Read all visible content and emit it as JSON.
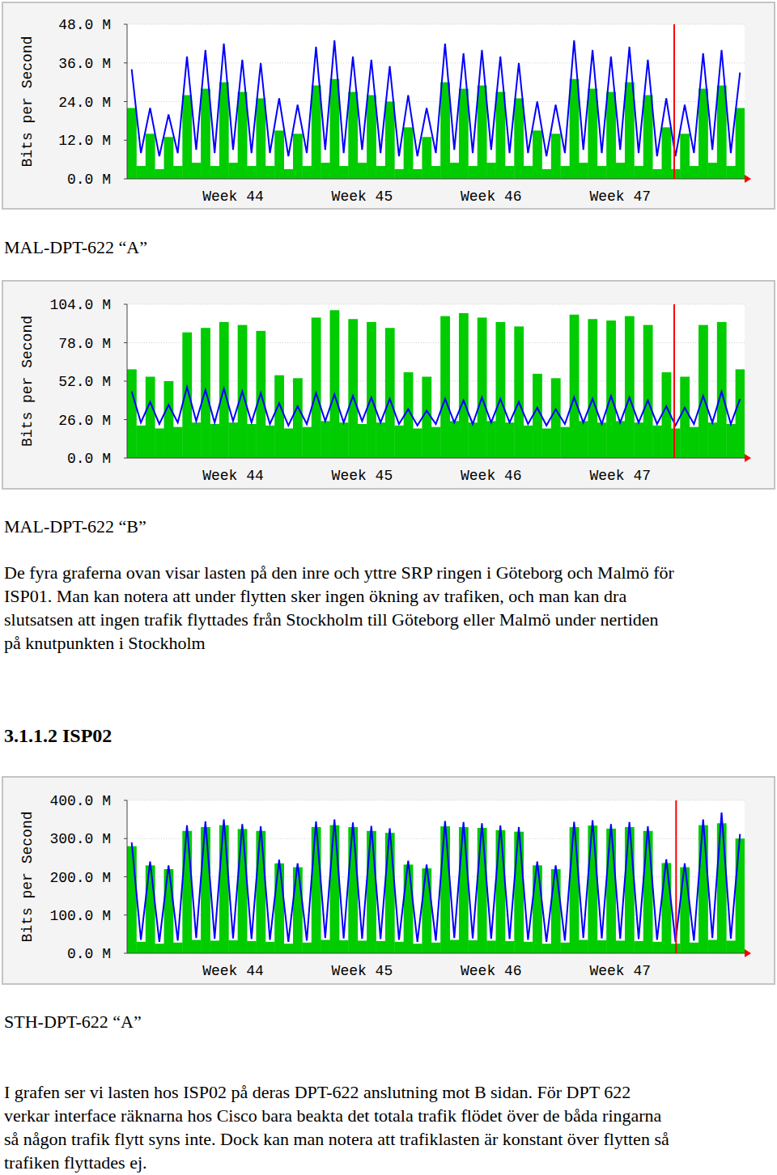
{
  "chart_data": [
    {
      "type": "bar",
      "y_label": "Bits per Second",
      "categories": [
        null,
        null,
        null,
        null,
        null,
        null,
        null,
        null,
        null,
        null,
        null,
        "Week 44",
        null,
        null,
        null,
        null,
        null,
        null,
        null,
        null,
        null,
        null,
        null,
        null,
        null,
        "Week 45",
        null,
        null,
        null,
        null,
        null,
        null,
        null,
        null,
        null,
        null,
        null,
        null,
        null,
        "Week 46",
        null,
        null,
        null,
        null,
        null,
        null,
        null,
        null,
        null,
        null,
        null,
        null,
        null,
        "Week 47",
        null,
        null,
        null,
        null,
        null,
        null,
        null,
        null,
        null,
        null,
        null,
        null,
        null
      ],
      "ylim": [
        0,
        48
      ],
      "yticks": [
        {
          "value": 0,
          "label": "0.0 M"
        },
        {
          "value": 12,
          "label": "12.0 M"
        },
        {
          "value": 24,
          "label": "24.0 M"
        },
        {
          "value": 36,
          "label": "36.0 M"
        },
        {
          "value": 48,
          "label": "48.0 M"
        }
      ],
      "grid": true,
      "series": [
        {
          "type": "bar",
          "color": "#00cc00",
          "values": [
            22,
            4,
            14,
            3,
            13,
            4,
            26,
            5,
            28,
            4,
            30,
            5,
            27,
            4,
            25,
            4,
            15,
            3,
            14,
            4,
            29,
            5,
            31,
            4,
            27,
            5,
            26,
            4,
            24,
            3,
            16,
            3,
            13,
            4,
            30,
            5,
            28,
            4,
            29,
            5,
            27,
            4,
            25,
            4,
            15,
            3,
            14,
            4,
            31,
            5,
            28,
            4,
            27,
            5,
            30,
            4,
            26,
            3,
            16,
            3,
            14,
            4,
            28,
            5,
            29,
            4,
            22
          ]
        },
        {
          "type": "line",
          "color": "#0000ff",
          "values": [
            34,
            8,
            22,
            7,
            20,
            8,
            38,
            9,
            40,
            8,
            42,
            9,
            37,
            8,
            36,
            8,
            25,
            7,
            23,
            8,
            41,
            9,
            43,
            8,
            38,
            9,
            37,
            8,
            35,
            7,
            26,
            7,
            22,
            8,
            42,
            9,
            39,
            8,
            40,
            9,
            38,
            8,
            36,
            8,
            24,
            7,
            23,
            8,
            43,
            9,
            40,
            8,
            38,
            9,
            41,
            8,
            37,
            7,
            25,
            7,
            23,
            8,
            39,
            9,
            40,
            8,
            33
          ]
        }
      ]
    },
    {
      "type": "bar",
      "y_label": "Bits per Second",
      "categories": [
        null,
        null,
        null,
        null,
        null,
        null,
        null,
        null,
        null,
        null,
        null,
        "Week 44",
        null,
        null,
        null,
        null,
        null,
        null,
        null,
        null,
        null,
        null,
        null,
        null,
        null,
        "Week 45",
        null,
        null,
        null,
        null,
        null,
        null,
        null,
        null,
        null,
        null,
        null,
        null,
        null,
        "Week 46",
        null,
        null,
        null,
        null,
        null,
        null,
        null,
        null,
        null,
        null,
        null,
        null,
        null,
        "Week 47",
        null,
        null,
        null,
        null,
        null,
        null,
        null,
        null,
        null,
        null,
        null,
        null,
        null
      ],
      "ylim": [
        0,
        104
      ],
      "yticks": [
        {
          "value": 0,
          "label": "0.0 M"
        },
        {
          "value": 26,
          "label": "26.0 M"
        },
        {
          "value": 52,
          "label": "52.0 M"
        },
        {
          "value": 78,
          "label": "78.0 M"
        },
        {
          "value": 104,
          "label": "104.0 M"
        }
      ],
      "grid": true,
      "series": [
        {
          "type": "bar",
          "color": "#00cc00",
          "values": [
            60,
            22,
            55,
            20,
            52,
            21,
            85,
            24,
            88,
            23,
            92,
            24,
            90,
            23,
            86,
            22,
            56,
            20,
            54,
            21,
            95,
            25,
            100,
            24,
            94,
            23,
            92,
            24,
            88,
            22,
            58,
            20,
            55,
            21,
            96,
            25,
            98,
            24,
            95,
            25,
            92,
            24,
            89,
            22,
            57,
            20,
            54,
            21,
            97,
            25,
            94,
            24,
            93,
            25,
            96,
            24,
            90,
            22,
            58,
            20,
            55,
            21,
            90,
            24,
            92,
            23,
            60
          ]
        },
        {
          "type": "line",
          "color": "#0000ff",
          "values": [
            45,
            24,
            38,
            23,
            36,
            24,
            48,
            25,
            46,
            24,
            47,
            25,
            45,
            24,
            44,
            23,
            37,
            22,
            35,
            23,
            44,
            25,
            43,
            24,
            42,
            25,
            41,
            24,
            40,
            23,
            33,
            22,
            32,
            23,
            40,
            24,
            39,
            23,
            41,
            24,
            40,
            24,
            38,
            23,
            34,
            22,
            33,
            23,
            41,
            24,
            40,
            23,
            42,
            24,
            41,
            24,
            39,
            23,
            35,
            22,
            34,
            23,
            42,
            24,
            45,
            23,
            40
          ]
        }
      ]
    },
    {
      "type": "bar",
      "y_label": "Bits per Second",
      "categories": [
        null,
        null,
        null,
        null,
        null,
        null,
        null,
        null,
        null,
        null,
        null,
        "Week 44",
        null,
        null,
        null,
        null,
        null,
        null,
        null,
        null,
        null,
        null,
        null,
        null,
        null,
        "Week 45",
        null,
        null,
        null,
        null,
        null,
        null,
        null,
        null,
        null,
        null,
        null,
        null,
        null,
        "Week 46",
        null,
        null,
        null,
        null,
        null,
        null,
        null,
        null,
        null,
        null,
        null,
        null,
        null,
        "Week 47",
        null,
        null,
        null,
        null,
        null,
        null,
        null,
        null,
        null,
        null,
        null,
        null,
        null
      ],
      "ylim": [
        0,
        400
      ],
      "yticks": [
        {
          "value": 0,
          "label": "0.0 M"
        },
        {
          "value": 100,
          "label": "100.0 M"
        },
        {
          "value": 200,
          "label": "200.0 M"
        },
        {
          "value": 300,
          "label": "300.0 M"
        },
        {
          "value": 400,
          "label": "400.0 M"
        }
      ],
      "grid": true,
      "series": [
        {
          "type": "bar",
          "color": "#00cc00",
          "values": [
            280,
            30,
            230,
            25,
            220,
            28,
            320,
            35,
            330,
            33,
            335,
            34,
            325,
            32,
            320,
            30,
            235,
            25,
            225,
            28,
            330,
            35,
            335,
            34,
            330,
            33,
            320,
            32,
            315,
            30,
            232,
            25,
            222,
            28,
            332,
            35,
            330,
            34,
            328,
            33,
            322,
            32,
            318,
            30,
            230,
            25,
            220,
            28,
            330,
            35,
            334,
            34,
            326,
            33,
            330,
            32,
            320,
            30,
            236,
            25,
            225,
            28,
            335,
            35,
            340,
            33,
            300
          ]
        },
        {
          "type": "line",
          "color": "#0000ff",
          "values": [
            290,
            35,
            240,
            30,
            230,
            33,
            335,
            40,
            345,
            38,
            350,
            39,
            338,
            37,
            332,
            35,
            245,
            30,
            235,
            33,
            345,
            40,
            350,
            39,
            342,
            38,
            333,
            37,
            327,
            35,
            242,
            30,
            232,
            33,
            346,
            40,
            343,
            39,
            340,
            38,
            334,
            37,
            330,
            35,
            240,
            30,
            230,
            33,
            344,
            40,
            348,
            39,
            338,
            38,
            343,
            37,
            332,
            35,
            246,
            30,
            235,
            33,
            350,
            40,
            368,
            38,
            312
          ]
        }
      ]
    }
  ],
  "document": {
    "caption_1": "MAL-DPT-622 “A”",
    "caption_2": "MAL-DPT-622 “B”",
    "paragraph_1": [
      "De fyra graferna ovan visar lasten på den inre och yttre SRP ringen i Göteborg och Malmö för",
      "ISP01. Man kan notera att under flytten sker ingen ökning av trafiken, och man kan dra",
      "slutsatsen att ingen trafik flyttades från Stockholm till Göteborg eller Malmö under nertiden",
      "på knutpunkten i Stockholm"
    ],
    "heading": "3.1.1.2 ISP02",
    "caption_3": "STH-DPT-622 “A”",
    "paragraph_2": [
      "I grafen ser vi lasten hos ISP02 på deras DPT-622 anslutning mot B sidan. För DPT 622",
      "verkar interface räknarna hos Cisco bara beakta det totala trafik flödet över de båda ringarna",
      "så någon trafik flytt syns inte. Dock kan man notera att trafiklasten är konstant över flytten så",
      "trafiken flyttades ej."
    ]
  }
}
